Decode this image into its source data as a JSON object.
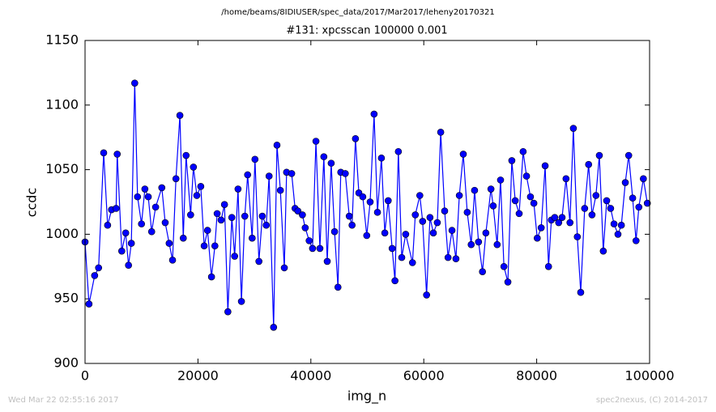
{
  "header": "/home/beams/8IDIUSER/spec_data/2017/Mar2017/leheny20170321",
  "footer_left": "Wed Mar 22 02:55:16 2017",
  "footer_right": "spec2nexus, (C) 2014-2017",
  "chart_data": {
    "type": "line",
    "title": "#131: xpcsscan 100000 0.001",
    "xlabel": "img_n",
    "ylabel": "ccdc",
    "color": "#0000ff",
    "marker": "circle",
    "x": [
      0,
      700,
      1700,
      2400,
      3300,
      4000,
      4700,
      5500,
      5700,
      6500,
      7200,
      7700,
      8200,
      8800,
      9300,
      10000,
      10600,
      11200,
      11800,
      12500,
      13600,
      14200,
      14900,
      15500,
      16100,
      16800,
      17400,
      17900,
      18700,
      19200,
      19800,
      20500,
      21100,
      21700,
      22400,
      23000,
      23400,
      24100,
      24700,
      25300,
      26000,
      26500,
      27100,
      27700,
      28300,
      28800,
      29600,
      30100,
      30800,
      31400,
      32100,
      32600,
      33400,
      34000,
      34600,
      35300,
      35700,
      36600,
      37200,
      37700,
      38500,
      39000,
      39700,
      40300,
      40900,
      41600,
      42300,
      42900,
      43600,
      44200,
      44800,
      45300,
      46100,
      46800,
      47300,
      47900,
      48500,
      49200,
      49900,
      50500,
      51200,
      51800,
      52500,
      53100,
      53700,
      54400,
      54900,
      55500,
      56100,
      56800,
      58000,
      58500,
      59300,
      59800,
      60500,
      61100,
      61700,
      62400,
      63000,
      63700,
      64300,
      65000,
      65700,
      66300,
      67000,
      67700,
      68400,
      69000,
      69700,
      70400,
      71000,
      71900,
      72300,
      73000,
      73600,
      74200,
      74900,
      75600,
      76200,
      76900,
      77600,
      78200,
      78900,
      79500,
      80100,
      80800,
      81500,
      82100,
      82600,
      83200,
      83900,
      84500,
      85200,
      85900,
      86500,
      87200,
      87800,
      88500,
      89200,
      89800,
      90500,
      91100,
      91800,
      92400,
      93100,
      93700,
      94400,
      95000,
      95700,
      96300,
      97000,
      97600,
      98100,
      98900,
      99600
    ],
    "values": [
      994,
      946,
      968,
      974,
      1063,
      1007,
      1019,
      1020,
      1062,
      987,
      1001,
      976,
      993,
      1117,
      1029,
      1008,
      1035,
      1029,
      1002,
      1021,
      1036,
      1009,
      993,
      980,
      1043,
      1092,
      997,
      1061,
      1015,
      1052,
      1030,
      1037,
      991,
      1003,
      967,
      991,
      1016,
      1011,
      1023,
      940,
      1013,
      983,
      1035,
      948,
      1014,
      1046,
      997,
      1058,
      979,
      1014,
      1007,
      1045,
      928,
      1069,
      1034,
      974,
      1048,
      1047,
      1020,
      1018,
      1015,
      1005,
      995,
      989,
      1072,
      989,
      1060,
      979,
      1055,
      1002,
      959,
      1048,
      1047,
      1014,
      1007,
      1074,
      1032,
      1029,
      999,
      1025,
      1093,
      1017,
      1059,
      1001,
      1026,
      989,
      964,
      1064,
      982,
      1000,
      978,
      1015,
      1030,
      1010,
      953,
      1013,
      1001,
      1009,
      1079,
      1018,
      982,
      1003,
      981,
      1030,
      1062,
      1017,
      992,
      1034,
      994,
      971,
      1001,
      1035,
      1022,
      992,
      1042,
      975,
      963,
      1057,
      1026,
      1016,
      1064,
      1045,
      1029,
      1024,
      997,
      1005,
      1053,
      975,
      1011,
      1013,
      1009,
      1013,
      1043,
      1009,
      1082,
      998,
      955,
      1020,
      1054,
      1015,
      1030,
      1061,
      987,
      1026,
      1020,
      1008,
      1000,
      1007,
      1040,
      1061,
      1028,
      995,
      1021,
      1043,
      1024
    ],
    "xlim": [
      0,
      100000
    ],
    "xticks": [
      0,
      20000,
      40000,
      60000,
      80000,
      100000
    ],
    "ylim": [
      900,
      1150
    ],
    "yticks": [
      900,
      950,
      1000,
      1050,
      1100,
      1150
    ],
    "grid": false
  }
}
